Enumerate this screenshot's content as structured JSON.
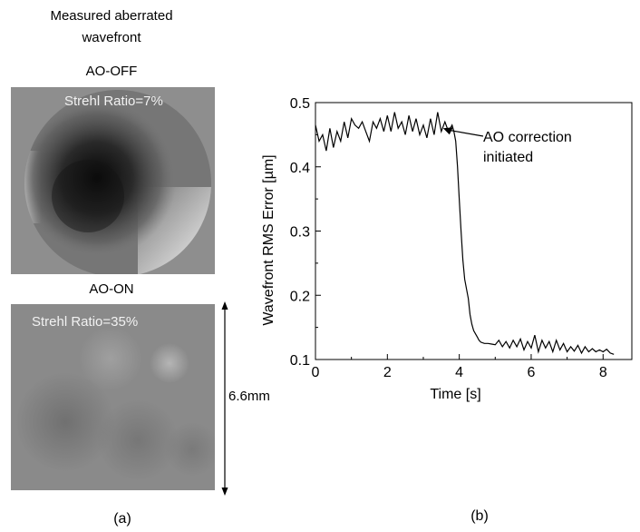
{
  "panel_a": {
    "title_line1": "Measured aberrated",
    "title_line2": "wavefront",
    "label_off": "AO-OFF",
    "label_on": "AO-ON",
    "strehl_off": "Strehl Ratio=7%",
    "strehl_on": "Strehl Ratio=35%",
    "scale_label": "6.6mm",
    "caption": "(a)"
  },
  "panel_b": {
    "caption": "(b)"
  },
  "chart_data": {
    "type": "line",
    "xlabel": "Time [s]",
    "ylabel": "Wavefront RMS Error [µm]",
    "xlim": [
      0,
      8.8
    ],
    "ylim": [
      0.1,
      0.5
    ],
    "xticks": [
      0,
      2,
      4,
      6,
      8
    ],
    "yticks": [
      0.1,
      0.2,
      0.3,
      0.4,
      0.5
    ],
    "grid": false,
    "annotation": {
      "text_line1": "AO correction",
      "text_line2": "initiated",
      "x": 3.55,
      "y": 0.46
    },
    "series": [
      {
        "x": [
          0.0,
          0.1,
          0.2,
          0.3,
          0.4,
          0.5,
          0.6,
          0.7,
          0.8,
          0.9,
          1.0,
          1.1,
          1.2,
          1.3,
          1.4,
          1.5,
          1.6,
          1.7,
          1.8,
          1.9,
          2.0,
          2.1,
          2.2,
          2.3,
          2.4,
          2.5,
          2.6,
          2.7,
          2.8,
          2.9,
          3.0,
          3.1,
          3.2,
          3.3,
          3.4,
          3.5,
          3.6,
          3.7,
          3.8,
          3.85,
          3.9,
          3.95,
          4.0,
          4.05,
          4.1,
          4.15,
          4.2,
          4.25,
          4.3,
          4.35,
          4.4,
          4.45,
          4.5,
          4.55,
          4.6,
          4.7,
          4.8,
          4.9,
          5.0,
          5.1,
          5.2,
          5.3,
          5.4,
          5.5,
          5.6,
          5.7,
          5.8,
          5.9,
          6.0,
          6.1,
          6.2,
          6.3,
          6.4,
          6.5,
          6.6,
          6.7,
          6.8,
          6.9,
          7.0,
          7.1,
          7.2,
          7.3,
          7.4,
          7.5,
          7.6,
          7.7,
          7.8,
          7.9,
          8.0,
          8.1,
          8.2,
          8.3
        ],
        "y": [
          0.465,
          0.44,
          0.45,
          0.425,
          0.46,
          0.43,
          0.455,
          0.44,
          0.47,
          0.445,
          0.475,
          0.465,
          0.46,
          0.47,
          0.455,
          0.44,
          0.47,
          0.46,
          0.475,
          0.455,
          0.48,
          0.455,
          0.485,
          0.46,
          0.47,
          0.45,
          0.48,
          0.455,
          0.475,
          0.45,
          0.465,
          0.445,
          0.475,
          0.45,
          0.485,
          0.455,
          0.47,
          0.455,
          0.465,
          0.455,
          0.44,
          0.4,
          0.35,
          0.3,
          0.255,
          0.225,
          0.21,
          0.195,
          0.17,
          0.155,
          0.145,
          0.14,
          0.135,
          0.13,
          0.127,
          0.125,
          0.125,
          0.124,
          0.123,
          0.13,
          0.12,
          0.128,
          0.118,
          0.13,
          0.12,
          0.132,
          0.115,
          0.128,
          0.118,
          0.138,
          0.112,
          0.13,
          0.118,
          0.128,
          0.112,
          0.13,
          0.115,
          0.125,
          0.112,
          0.12,
          0.113,
          0.122,
          0.11,
          0.12,
          0.112,
          0.117,
          0.112,
          0.115,
          0.112,
          0.116,
          0.11,
          0.108
        ]
      }
    ]
  }
}
